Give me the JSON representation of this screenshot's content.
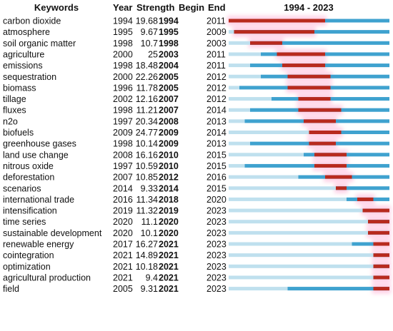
{
  "chart_data": {
    "type": "table",
    "headers": {
      "keywords": "Keywords",
      "year": "Year",
      "strength": "Strength",
      "begin": "Begin",
      "end": "End",
      "timeline": "1994 - 2023"
    },
    "timeline_range": [
      1994,
      2023
    ],
    "colors": {
      "baseline_light": "#bfe0ee",
      "baseline_active": "#3fa2cf",
      "burst": "#b82a1e",
      "glow": "#ff9ac8"
    },
    "rows": [
      {
        "keyword": "carbon dioxide",
        "year": "1994",
        "strength": "19.68",
        "begin": "1994",
        "end": "2011"
      },
      {
        "keyword": "atmosphere",
        "year": "1995",
        "strength": "9.67",
        "begin": "1995",
        "end": "2009"
      },
      {
        "keyword": "soil organic matter",
        "year": "1998",
        "strength": "10.7",
        "begin": "1998",
        "end": "2003"
      },
      {
        "keyword": "agriculture",
        "year": "2000",
        "strength": "25",
        "begin": "2003",
        "end": "2011"
      },
      {
        "keyword": "emissions",
        "year": "1998",
        "strength": "18.48",
        "begin": "2004",
        "end": "2011"
      },
      {
        "keyword": "sequestration",
        "year": "2000",
        "strength": "22.26",
        "begin": "2005",
        "end": "2012"
      },
      {
        "keyword": "biomass",
        "year": "1996",
        "strength": "11.78",
        "begin": "2005",
        "end": "2012"
      },
      {
        "keyword": "tillage",
        "year": "2002",
        "strength": "12.16",
        "begin": "2007",
        "end": "2012"
      },
      {
        "keyword": "fluxes",
        "year": "1998",
        "strength": "11.21",
        "begin": "2007",
        "end": "2014"
      },
      {
        "keyword": "n2o",
        "year": "1997",
        "strength": "20.34",
        "begin": "2008",
        "end": "2013"
      },
      {
        "keyword": "biofuels",
        "year": "2009",
        "strength": "24.77",
        "begin": "2009",
        "end": "2014"
      },
      {
        "keyword": "greenhouse gases",
        "year": "1998",
        "strength": "10.14",
        "begin": "2009",
        "end": "2013"
      },
      {
        "keyword": "land use change",
        "year": "2008",
        "strength": "16.16",
        "begin": "2010",
        "end": "2015"
      },
      {
        "keyword": "nitrous oxide",
        "year": "1997",
        "strength": "10.59",
        "begin": "2010",
        "end": "2015"
      },
      {
        "keyword": "deforestation",
        "year": "2007",
        "strength": "10.85",
        "begin": "2012",
        "end": "2016"
      },
      {
        "keyword": "scenarios",
        "year": "2014",
        "strength": "9.33",
        "begin": "2014",
        "end": "2015"
      },
      {
        "keyword": "international trade",
        "year": "2016",
        "strength": "11.34",
        "begin": "2018",
        "end": "2020"
      },
      {
        "keyword": "intensification",
        "year": "2019",
        "strength": "11.32",
        "begin": "2019",
        "end": "2023"
      },
      {
        "keyword": "time series",
        "year": "2020",
        "strength": "11.1",
        "begin": "2020",
        "end": "2023"
      },
      {
        "keyword": "sustainable development",
        "year": "2020",
        "strength": "10.1",
        "begin": "2020",
        "end": "2023"
      },
      {
        "keyword": "renewable energy",
        "year": "2017",
        "strength": "16.27",
        "begin": "2021",
        "end": "2023"
      },
      {
        "keyword": "cointegration",
        "year": "2021",
        "strength": "14.89",
        "begin": "2021",
        "end": "2023"
      },
      {
        "keyword": "optimization",
        "year": "2021",
        "strength": "10.18",
        "begin": "2021",
        "end": "2023"
      },
      {
        "keyword": "agricultural production",
        "year": "2021",
        "strength": "9.4",
        "begin": "2021",
        "end": "2023"
      },
      {
        "keyword": "field",
        "year": "2005",
        "strength": "9.31",
        "begin": "2021",
        "end": "2023"
      }
    ]
  }
}
